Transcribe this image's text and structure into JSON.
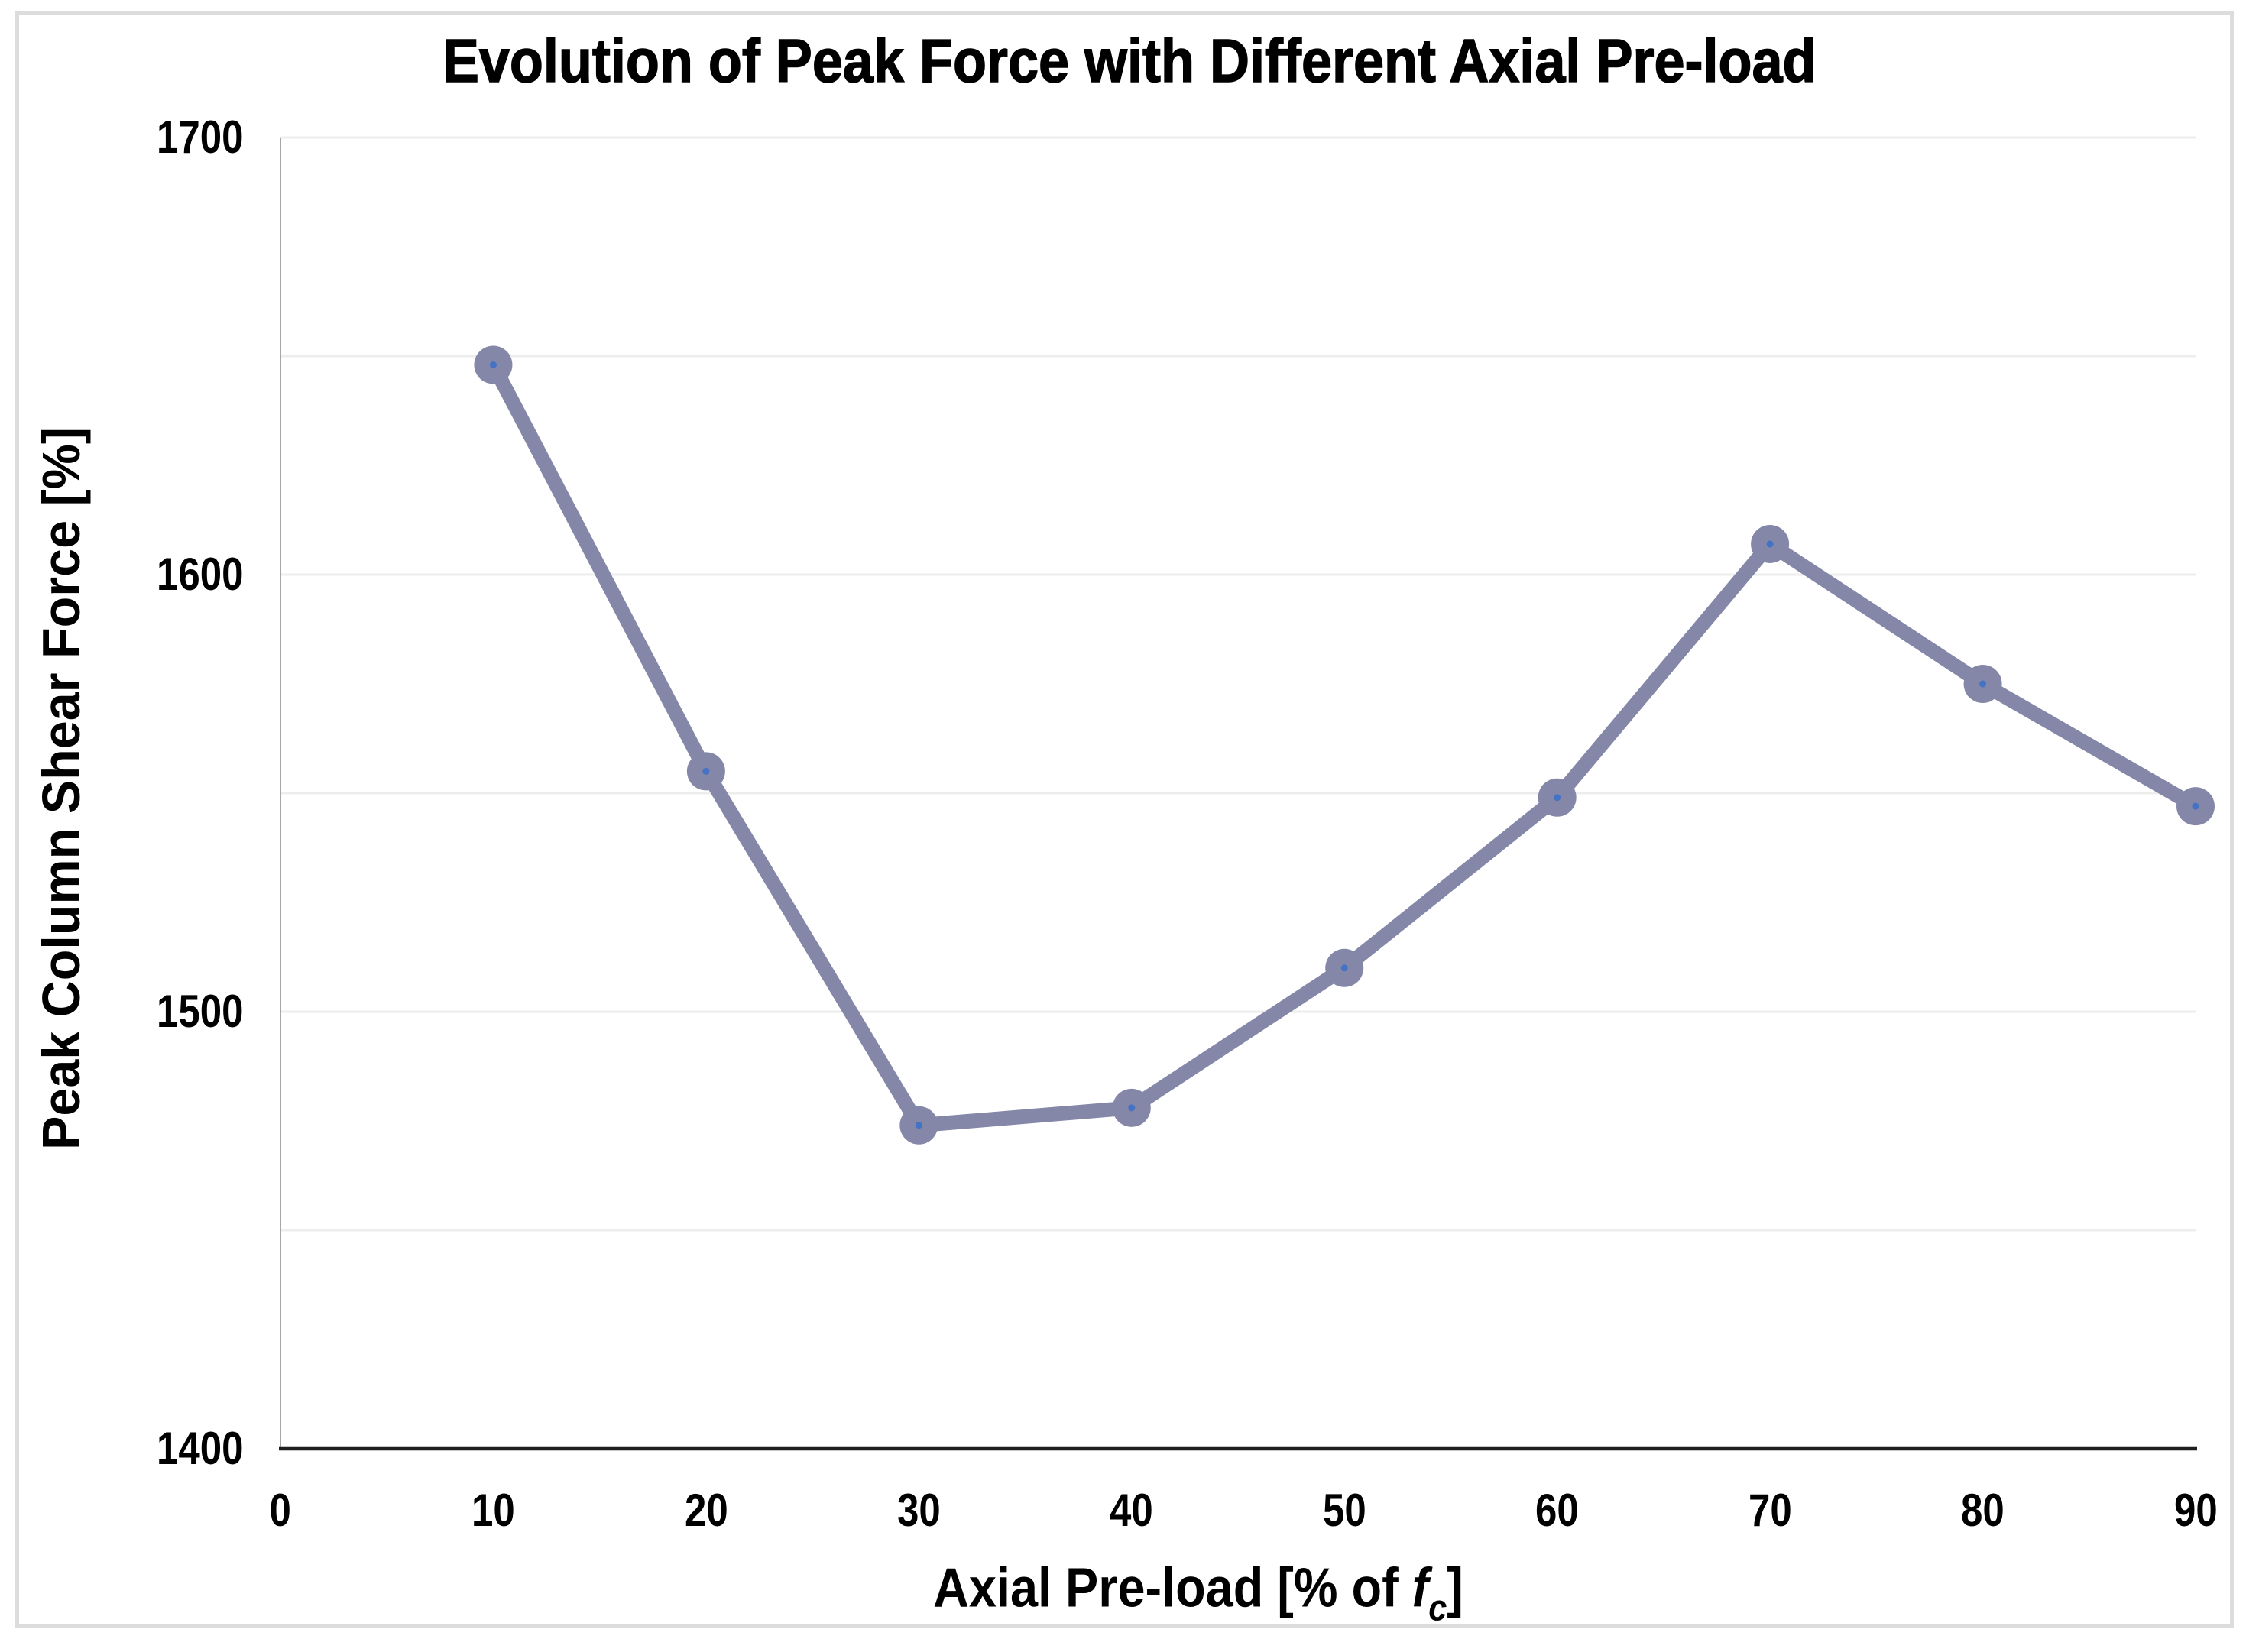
{
  "chart_data": {
    "type": "line",
    "title": "Evolution of Peak Force with Different Axial Pre-load",
    "ylabel": "Peak Column Shear Force [%]",
    "xlabel": {
      "prefix": "Axial Pre-load [% of ",
      "variable": "f",
      "subscript": "c",
      "suffix": "]"
    },
    "x": [
      10,
      20,
      30,
      40,
      50,
      60,
      70,
      80,
      90
    ],
    "values": [
      1648,
      1555,
      1474,
      1478,
      1510,
      1549,
      1607,
      1575,
      1547
    ],
    "xlim": [
      0,
      90
    ],
    "ylim": [
      1400,
      1700
    ],
    "x_ticks": [
      "0",
      "10",
      "20",
      "30",
      "40",
      "50",
      "60",
      "70",
      "80",
      "90"
    ],
    "x_tick_values": [
      0,
      10,
      20,
      30,
      40,
      50,
      60,
      70,
      80,
      90
    ],
    "y_ticks": [
      "1400",
      "1500",
      "1600",
      "1700"
    ],
    "y_tick_values": [
      1400,
      1500,
      1600,
      1700
    ],
    "gridlines": {
      "axis": "y",
      "values": [
        1450,
        1500,
        1550,
        1600,
        1650,
        1700
      ],
      "style": "light-horizontal"
    },
    "legend": "none",
    "marker": "circle-with-center-dot",
    "colors": {
      "line": "#8487a8",
      "marker_fill": "#8487a8",
      "marker_center_dot": "#4472c4",
      "gridline": "#ededed",
      "x_axis_line": "#1f1f1f",
      "y_axis_line": "#a6a6a6",
      "text": "#000000",
      "figure_border": "#dcdcdc",
      "background": "#ffffff"
    }
  }
}
